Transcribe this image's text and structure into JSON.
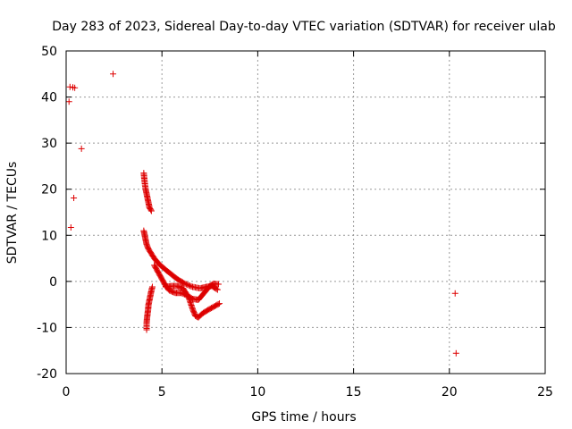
{
  "chart_data": {
    "type": "scatter",
    "title": "Day 283 of 2023, Sidereal Day-to-day VTEC variation (SDTVAR) for receiver ulab",
    "xlabel": "GPS time / hours",
    "ylabel": "SDTVAR / TECUs",
    "xlim": [
      0,
      25
    ],
    "ylim": [
      -20,
      50
    ],
    "xticks": [
      0,
      5,
      10,
      15,
      20,
      25
    ],
    "yticks": [
      -20,
      -10,
      0,
      10,
      20,
      30,
      40,
      50
    ],
    "grid": true,
    "marker": "+",
    "color": "#dd0000",
    "points": [
      [
        0.2,
        42.2
      ],
      [
        0.35,
        42.1
      ],
      [
        0.45,
        42.0
      ],
      [
        0.15,
        39.0
      ],
      [
        2.45,
        45.0
      ],
      [
        0.8,
        28.8
      ],
      [
        0.4,
        18.1
      ],
      [
        0.25,
        11.7
      ],
      [
        20.3,
        -2.6
      ],
      [
        20.35,
        -15.6
      ]
    ],
    "segments": [
      {
        "name": "arc-a",
        "points": [
          [
            4.05,
            23.5
          ],
          [
            4.1,
            21.5
          ],
          [
            4.15,
            20.0
          ],
          [
            4.2,
            19.0
          ],
          [
            4.25,
            18.0
          ],
          [
            4.3,
            17.0
          ],
          [
            4.35,
            16.0
          ],
          [
            4.45,
            15.3
          ]
        ]
      },
      {
        "name": "arc-b",
        "points": [
          [
            4.05,
            11.0
          ],
          [
            4.1,
            10.0
          ],
          [
            4.15,
            9.0
          ],
          [
            4.2,
            8.0
          ],
          [
            4.3,
            7.0
          ],
          [
            4.45,
            6.0
          ],
          [
            4.6,
            5.0
          ],
          [
            4.8,
            4.0
          ],
          [
            5.0,
            3.2
          ],
          [
            5.2,
            2.5
          ],
          [
            5.5,
            1.5
          ],
          [
            5.8,
            0.5
          ],
          [
            6.2,
            -0.5
          ],
          [
            6.6,
            -1.2
          ],
          [
            7.0,
            -1.5
          ],
          [
            7.3,
            -1.2
          ],
          [
            7.6,
            -1.0
          ],
          [
            7.9,
            -1.8
          ]
        ]
      },
      {
        "name": "arc-c",
        "points": [
          [
            4.2,
            -10.5
          ],
          [
            4.2,
            -9.0
          ],
          [
            4.22,
            -8.0
          ],
          [
            4.25,
            -7.0
          ],
          [
            4.28,
            -6.0
          ],
          [
            4.3,
            -5.0
          ],
          [
            4.35,
            -4.0
          ],
          [
            4.4,
            -3.0
          ],
          [
            4.45,
            -2.0
          ],
          [
            4.5,
            -1.2
          ]
        ]
      },
      {
        "name": "arc-d",
        "points": [
          [
            4.6,
            3.5
          ],
          [
            4.8,
            2.0
          ],
          [
            5.0,
            0.5
          ],
          [
            5.2,
            -1.0
          ],
          [
            5.4,
            -2.0
          ],
          [
            5.7,
            -2.5
          ],
          [
            6.0,
            -2.5
          ],
          [
            6.3,
            -3.0
          ],
          [
            6.6,
            -3.8
          ],
          [
            6.9,
            -4.0
          ],
          [
            7.1,
            -3.0
          ],
          [
            7.3,
            -2.0
          ],
          [
            7.5,
            -1.0
          ],
          [
            7.7,
            -0.5
          ],
          [
            7.95,
            -0.6
          ]
        ]
      },
      {
        "name": "arc-e",
        "points": [
          [
            5.2,
            -1.2
          ],
          [
            5.5,
            -1.0
          ],
          [
            5.8,
            -1.0
          ],
          [
            6.1,
            -1.5
          ],
          [
            6.4,
            -3.5
          ],
          [
            6.6,
            -6.0
          ],
          [
            6.75,
            -7.5
          ],
          [
            6.9,
            -7.8
          ],
          [
            7.1,
            -7.0
          ],
          [
            7.4,
            -6.2
          ],
          [
            7.7,
            -5.5
          ],
          [
            8.0,
            -4.8
          ]
        ]
      }
    ]
  }
}
